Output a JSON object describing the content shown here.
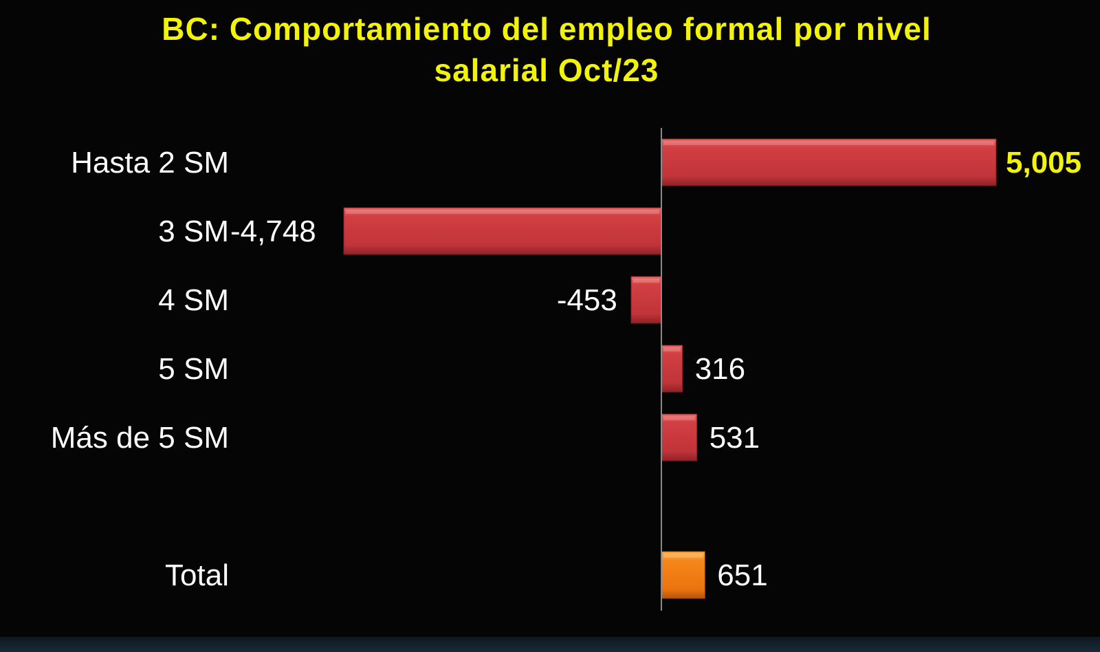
{
  "title": {
    "line1": "BC: Comportamiento del empleo formal por nivel",
    "line2": "salarial Oct/23"
  },
  "colors": {
    "background": "#050505",
    "title": "#f2f20a",
    "bar_red": "#c8373a",
    "bar_orange": "#f07a10",
    "label_text": "#ffffff",
    "highlight_label": "#f2f20a",
    "axis": "#8a8a8a"
  },
  "chart_data": {
    "type": "bar",
    "orientation": "horizontal",
    "categories": [
      "Hasta 2 SM",
      "3 SM",
      "4 SM",
      "5 SM",
      "Más de 5 SM",
      "Total"
    ],
    "values": [
      5005,
      -4748,
      -453,
      316,
      531,
      651
    ],
    "data_labels": [
      "5,005",
      "-4,748",
      "-453",
      "316",
      "531",
      "651"
    ],
    "title": "BC: Comportamiento del empleo formal por nivel salarial Oct/23",
    "xlabel": "",
    "ylabel": "",
    "xlim": [
      -4748,
      5005
    ],
    "grid": false,
    "legend": "none"
  }
}
